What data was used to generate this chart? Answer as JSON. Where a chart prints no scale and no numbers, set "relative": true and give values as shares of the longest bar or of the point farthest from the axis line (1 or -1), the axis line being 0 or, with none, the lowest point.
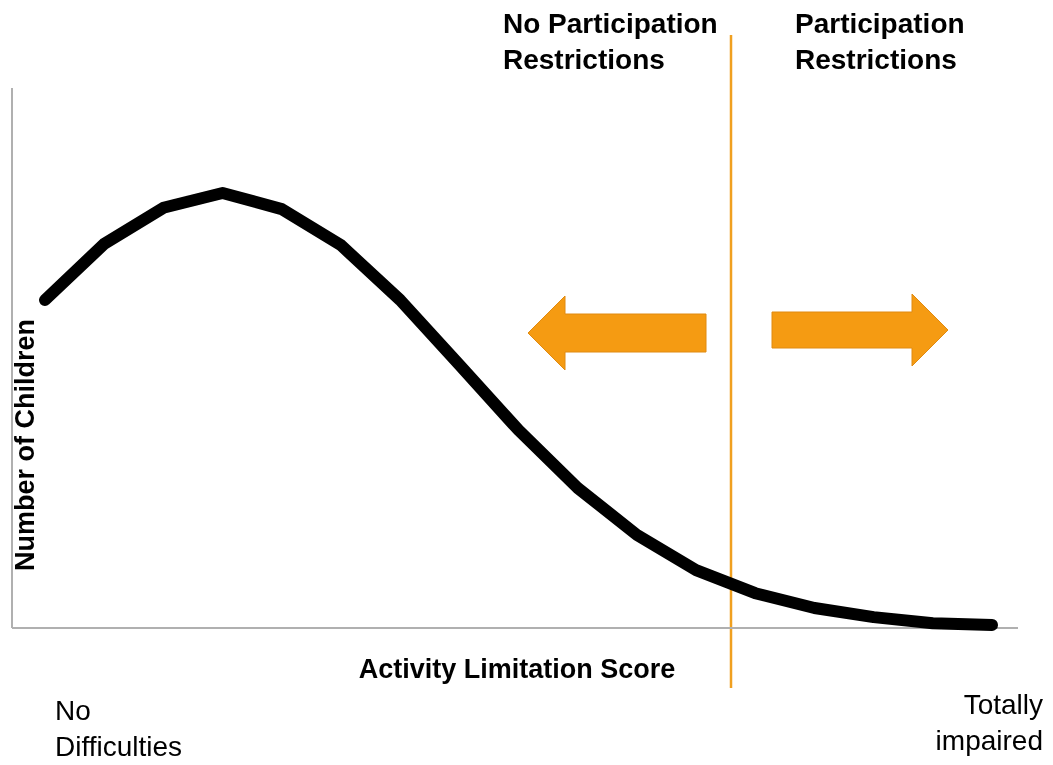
{
  "chart_data": {
    "type": "line",
    "relative": true,
    "xlabel": "Activity Limitation Score",
    "ylabel": "Number of Children",
    "categories": [
      null,
      null,
      null,
      null,
      null,
      null,
      null,
      null,
      null,
      null,
      null,
      null,
      null,
      null,
      null,
      null,
      null
    ],
    "series": [
      {
        "color": "#000000",
        "values": [
          0.754,
          0.883,
          0.966,
          1,
          0.963,
          0.88,
          0.754,
          0.605,
          0.455,
          0.322,
          0.214,
          0.133,
          0.08,
          0.046,
          0.025,
          0.011,
          0.007
        ]
      }
    ],
    "annotations": [
      "No Participation Restrictions",
      "Participation Restrictions",
      "No Difficulties",
      "Totally impaired"
    ],
    "marker": "none",
    "line_style": "solid"
  }
}
